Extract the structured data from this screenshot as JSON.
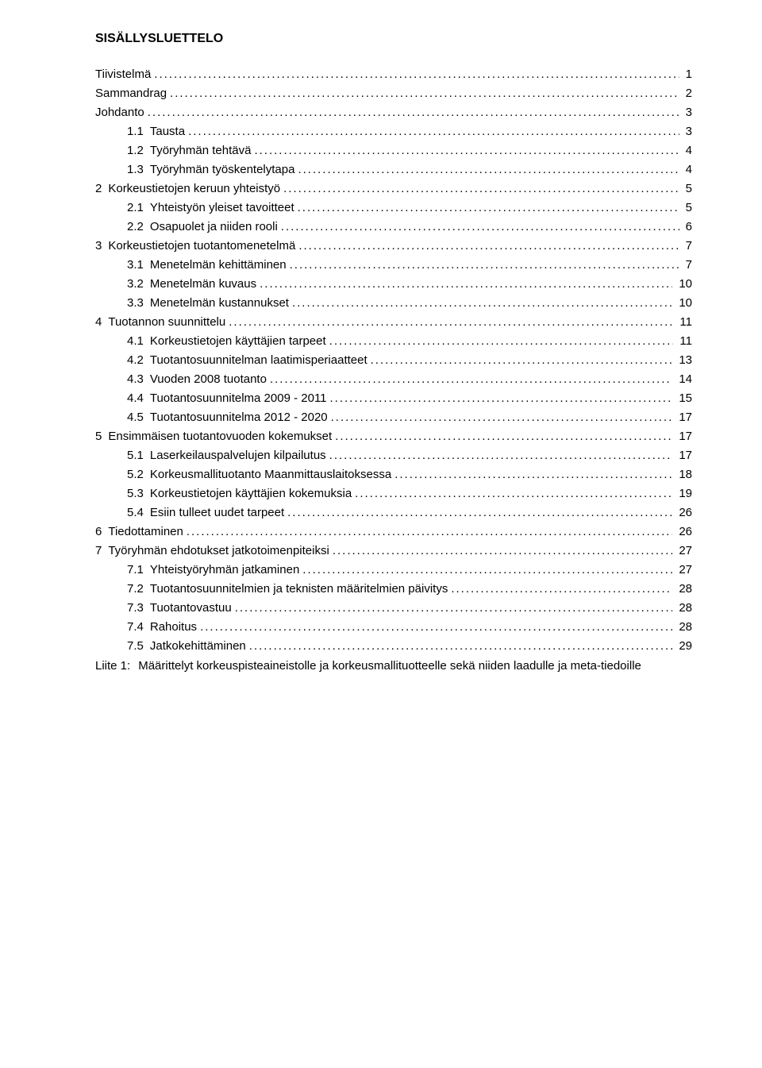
{
  "title": "SISÄLLYSLUETTELO",
  "toc": [
    {
      "level": 0,
      "num": "",
      "label": "Tiivistelmä",
      "page": "1"
    },
    {
      "level": 0,
      "num": "",
      "label": "Sammandrag",
      "page": "2"
    },
    {
      "level": 0,
      "num": "",
      "label": "Johdanto",
      "page": "3"
    },
    {
      "level": 2,
      "num": "1.1",
      "label": "Tausta",
      "page": "3"
    },
    {
      "level": 2,
      "num": "1.2",
      "label": "Työryhmän tehtävä",
      "page": "4"
    },
    {
      "level": 2,
      "num": "1.3",
      "label": "Työryhmän työskentelytapa",
      "page": "4"
    },
    {
      "level": 1,
      "num": "2",
      "label": "Korkeustietojen keruun yhteistyö",
      "page": "5"
    },
    {
      "level": 2,
      "num": "2.1",
      "label": "Yhteistyön yleiset tavoitteet",
      "page": "5"
    },
    {
      "level": 2,
      "num": "2.2",
      "label": "Osapuolet ja niiden rooli",
      "page": "6"
    },
    {
      "level": 1,
      "num": "3",
      "label": "Korkeustietojen tuotantomenetelmä",
      "page": "7"
    },
    {
      "level": 2,
      "num": "3.1",
      "label": "Menetelmän kehittäminen",
      "page": "7"
    },
    {
      "level": 2,
      "num": "3.2",
      "label": "Menetelmän kuvaus",
      "page": "10"
    },
    {
      "level": 2,
      "num": "3.3",
      "label": "Menetelmän kustannukset",
      "page": "10"
    },
    {
      "level": 1,
      "num": "4",
      "label": "Tuotannon suunnittelu",
      "page": "11"
    },
    {
      "level": 2,
      "num": "4.1",
      "label": "Korkeustietojen käyttäjien tarpeet",
      "page": "11"
    },
    {
      "level": 2,
      "num": "4.2",
      "label": "Tuotantosuunnitelman laatimisperiaatteet",
      "page": "13"
    },
    {
      "level": 2,
      "num": "4.3",
      "label": "Vuoden 2008 tuotanto",
      "page": "14"
    },
    {
      "level": 2,
      "num": "4.4",
      "label": "Tuotantosuunnitelma 2009 - 2011",
      "page": "15"
    },
    {
      "level": 2,
      "num": "4.5",
      "label": "Tuotantosuunnitelma 2012 - 2020",
      "page": "17"
    },
    {
      "level": 1,
      "num": "5",
      "label": "Ensimmäisen tuotantovuoden kokemukset",
      "page": "17"
    },
    {
      "level": 2,
      "num": "5.1",
      "label": "Laserkeilauspalvelujen kilpailutus",
      "page": "17"
    },
    {
      "level": 2,
      "num": "5.2",
      "label": "Korkeusmallituotanto Maanmittauslaitoksessa",
      "page": "18"
    },
    {
      "level": 2,
      "num": "5.3",
      "label": "Korkeustietojen käyttäjien kokemuksia",
      "page": "19"
    },
    {
      "level": 2,
      "num": "5.4",
      "label": "Esiin tulleet uudet tarpeet",
      "page": "26"
    },
    {
      "level": 1,
      "num": "6",
      "label": "Tiedottaminen",
      "page": "26"
    },
    {
      "level": 1,
      "num": "7",
      "label": "Työryhmän ehdotukset jatkotoimenpiteiksi",
      "page": "27"
    },
    {
      "level": 2,
      "num": "7.1",
      "label": "Yhteistyöryhmän jatkaminen",
      "page": "27"
    },
    {
      "level": 2,
      "num": "7.2",
      "label": "Tuotantosuunnitelmien ja teknisten määritelmien päivitys",
      "page": "28"
    },
    {
      "level": 2,
      "num": "7.3",
      "label": "Tuotantovastuu",
      "page": "28"
    },
    {
      "level": 2,
      "num": "7.4",
      "label": "Rahoitus",
      "page": "28"
    },
    {
      "level": 2,
      "num": "7.5",
      "label": "Jatkokehittäminen",
      "page": "29"
    }
  ],
  "appendix": {
    "label": "Liite 1:",
    "text": "Määrittelyt korkeuspisteaineistolle ja korkeusmallituotteelle sekä niiden laadulle ja meta-tiedoille"
  }
}
